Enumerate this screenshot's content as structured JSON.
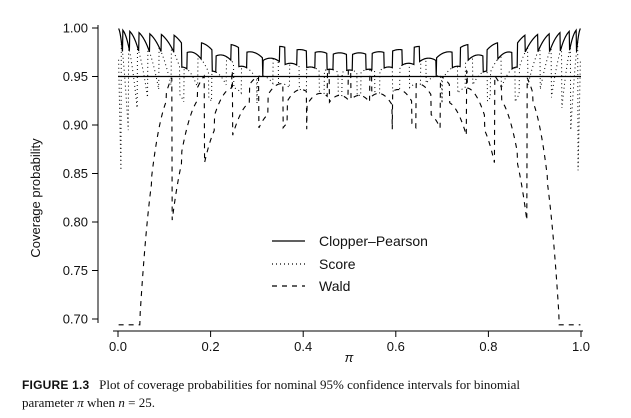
{
  "chart_data": {
    "type": "line",
    "xlabel": "π",
    "ylabel": "Coverage probability",
    "xlim": [
      0.0,
      1.0
    ],
    "ylim": [
      0.7,
      1.0
    ],
    "x_ticks": [
      "0.0",
      "0.2",
      "0.4",
      "0.6",
      "0.8",
      "1.0"
    ],
    "y_ticks": [
      "1.00",
      "0.95",
      "0.90",
      "0.85",
      "0.80",
      "0.75",
      "0.70"
    ],
    "reference_line": 0.95,
    "n": 25,
    "nominal_level": 0.95,
    "legend": [
      "Clopper–Pearson",
      "Score",
      "Wald"
    ],
    "legend_placement": "center-bottom",
    "series": [
      {
        "name": "Clopper–Pearson",
        "style": "solid"
      },
      {
        "name": "Score",
        "style": "dotted"
      },
      {
        "name": "Wald",
        "style": "dashed"
      }
    ]
  },
  "caption": {
    "label": "FIGURE 1.3",
    "line1": "Plot of coverage probabilities for nominal 95% confidence intervals for binomial",
    "line2_a": "parameter",
    "line2_param": "π",
    "line2_b": "when",
    "line2_n": "n",
    "line2_c": "= 25."
  }
}
